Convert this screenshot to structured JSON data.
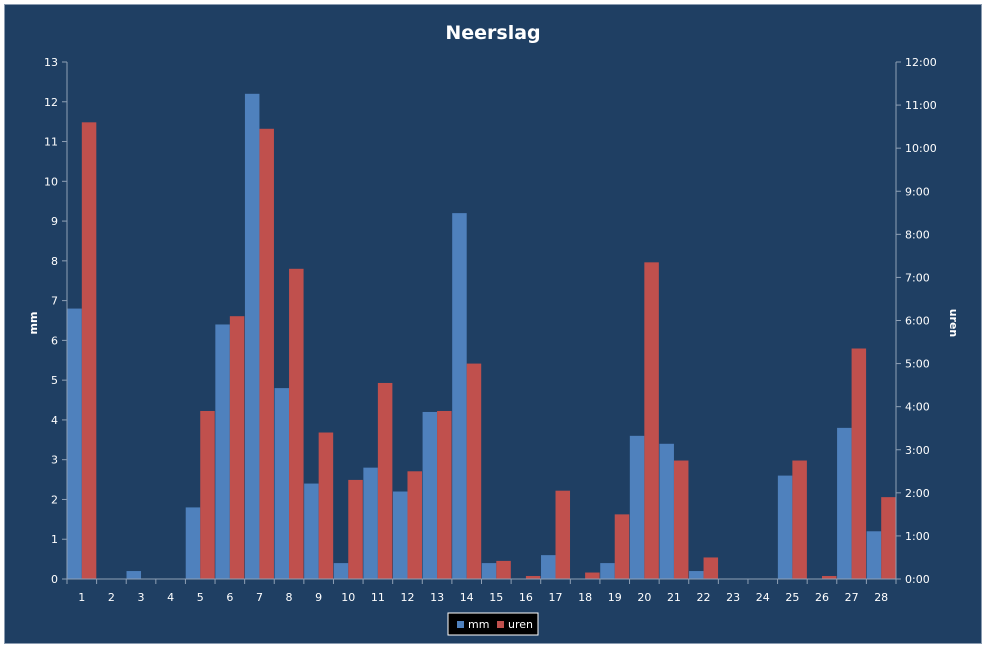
{
  "chart_data": {
    "type": "bar",
    "title": "Neerslag",
    "ylabel": "mm",
    "y2label": "uren",
    "categories": [
      "1",
      "2",
      "3",
      "4",
      "5",
      "6",
      "7",
      "8",
      "9",
      "10",
      "11",
      "12",
      "13",
      "14",
      "15",
      "16",
      "17",
      "18",
      "19",
      "20",
      "21",
      "22",
      "23",
      "24",
      "25",
      "26",
      "27",
      "28"
    ],
    "ylim": [
      0,
      13
    ],
    "y2lim": [
      0,
      12
    ],
    "yticks": [
      "0",
      "1",
      "2",
      "3",
      "4",
      "5",
      "6",
      "7",
      "8",
      "9",
      "10",
      "11",
      "12",
      "13"
    ],
    "y2ticks": [
      "0:00",
      "1:00",
      "2:00",
      "3:00",
      "4:00",
      "5:00",
      "6:00",
      "7:00",
      "8:00",
      "9:00",
      "10:00",
      "11:00",
      "12:00"
    ],
    "series": [
      {
        "name": "mm",
        "axis": "left",
        "color": "#4f81bd",
        "values": [
          6.8,
          0,
          0.2,
          0,
          1.8,
          6.4,
          12.2,
          4.8,
          2.4,
          0.4,
          2.8,
          2.2,
          4.2,
          9.2,
          0.4,
          0,
          0.6,
          0,
          0.4,
          3.6,
          3.4,
          0.2,
          0,
          0,
          2.6,
          0,
          3.8,
          1.2
        ]
      },
      {
        "name": "uren",
        "axis": "right",
        "color": "#c0504d",
        "values": [
          10.6,
          0,
          0,
          0,
          3.9,
          6.1,
          10.45,
          7.2,
          3.4,
          2.3,
          4.55,
          2.5,
          3.9,
          5.0,
          0.42,
          0.07,
          2.05,
          0.15,
          1.5,
          7.35,
          2.75,
          0.5,
          0,
          0,
          2.75,
          0.07,
          5.35,
          1.9
        ]
      }
    ],
    "legend": "bottom",
    "grid": false
  }
}
